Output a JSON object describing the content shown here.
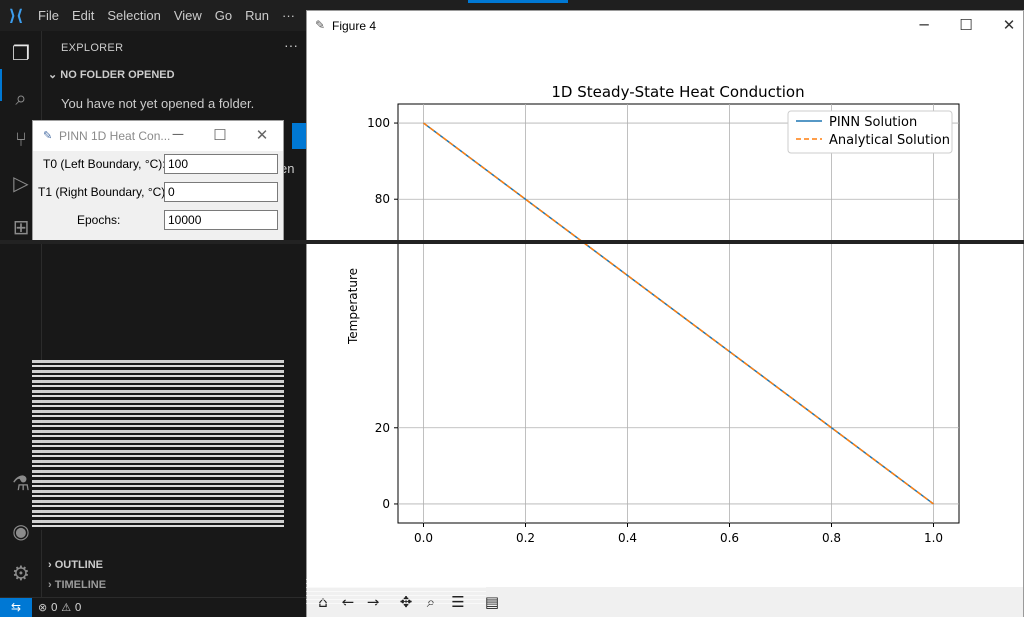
{
  "vscode": {
    "menu": [
      "File",
      "Edit",
      "Selection",
      "View",
      "Go",
      "Run",
      "···"
    ],
    "activity_icons": [
      "explorer-icon",
      "search-icon",
      "source-control-icon",
      "run-debug-icon",
      "extensions-icon",
      "testing-icon",
      "accounts-icon",
      "settings-gear-icon"
    ],
    "sidebar": {
      "header": "EXPLORER",
      "more": "···",
      "section_folder": "NO FOLDER OPENED",
      "message": "You have not yet opened a folder.",
      "side_text": "en",
      "section_outline": "OUTLINE",
      "section_timeline": "TIMELINE"
    },
    "status": {
      "remote": "⇆",
      "problems": "⊗ 0 ⚠ 0"
    }
  },
  "dialog": {
    "title": "PINN 1D Heat Con...",
    "fields": [
      {
        "label": "T0 (Left Boundary, °C):",
        "value": "100"
      },
      {
        "label": "T1 (Right Boundary, °C):",
        "value": "0"
      },
      {
        "label": "Epochs:",
        "value": "10000"
      }
    ]
  },
  "figure": {
    "window_title": "Figure 4",
    "colors": {
      "pinn": "#1f77b4",
      "analytical": "#ff7f0e"
    }
  },
  "chart_data": {
    "type": "line",
    "title": "1D Steady-State Heat Conduction",
    "xlabel": "",
    "ylabel": "Temperature",
    "xlim": [
      -0.05,
      1.05
    ],
    "ylim": [
      -5,
      105
    ],
    "xticks": [
      "0.0",
      "0.2",
      "0.4",
      "0.6",
      "0.8",
      "1.0"
    ],
    "yticks": [
      "0",
      "20",
      "80",
      "100"
    ],
    "grid": true,
    "legend_position": "top-right",
    "series": [
      {
        "name": "PINN Solution",
        "style": "solid",
        "x": [
          0.0,
          1.0
        ],
        "y": [
          100,
          0
        ]
      },
      {
        "name": "Analytical Solution",
        "style": "dashed",
        "x": [
          0.0,
          1.0
        ],
        "y": [
          100,
          0
        ]
      }
    ]
  }
}
